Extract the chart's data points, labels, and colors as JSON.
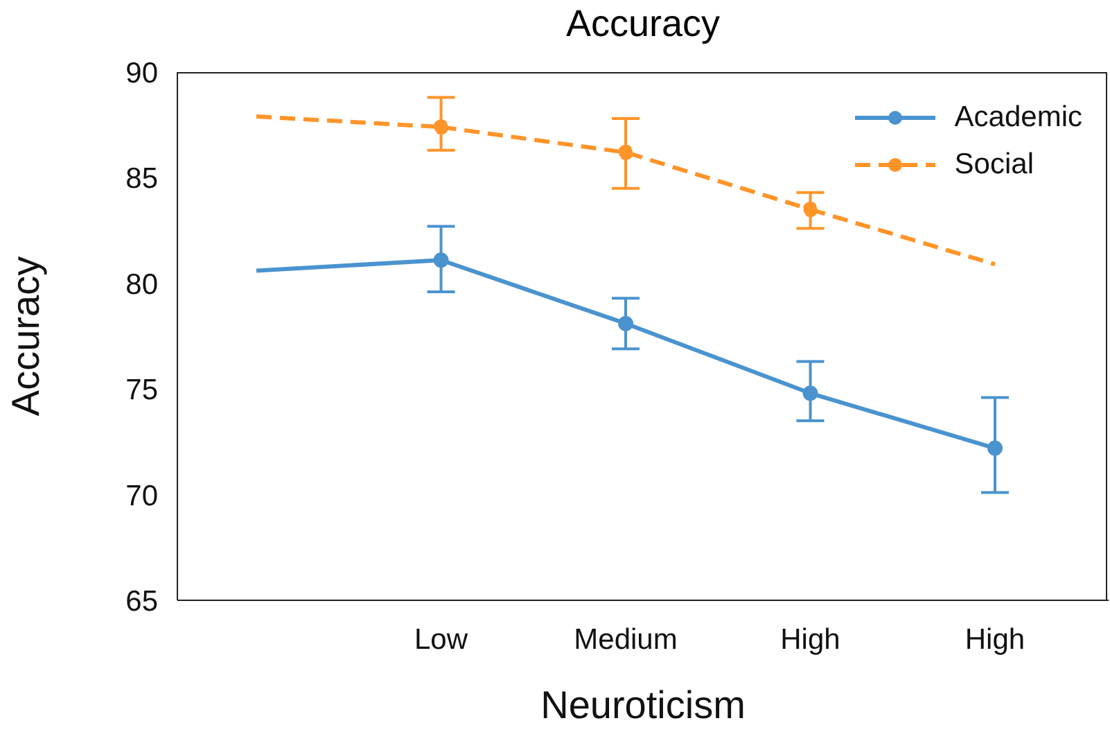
{
  "chart_data": {
    "type": "line",
    "title": "Accuracy",
    "xlabel": "Neuroticism",
    "ylabel": "Accuracy",
    "categories": [
      null,
      "Low",
      "Medium",
      "High",
      "High"
    ],
    "ylim": [
      65,
      90
    ],
    "yticks": [
      65,
      70,
      75,
      80,
      85,
      90
    ],
    "grid": false,
    "legend": "top right",
    "series": [
      {
        "name": "Academic",
        "color": "#4a93cf",
        "values": [
          null,
          81.1,
          78.1,
          74.8,
          72.2
        ],
        "errors": [
          null,
          [
            79.6,
            82.7
          ],
          [
            76.9,
            79.3
          ],
          [
            73.5,
            76.3
          ],
          [
            70.1,
            74.6
          ]
        ],
        "marker": "circle",
        "line_style": "solid"
      },
      {
        "color": "#4a93cf",
        "values": [
          80.6,
          81.1,
          null,
          null,
          null
        ],
        "marker": "none",
        "line_style": "solid"
      },
      {
        "name": "Social",
        "color": "#ff9429",
        "values": [
          null,
          87.4,
          86.2,
          83.5,
          null
        ],
        "errors": [
          null,
          [
            86.3,
            88.8
          ],
          [
            84.5,
            87.8
          ],
          [
            82.6,
            84.3
          ],
          null
        ],
        "marker": "circle",
        "line_style": "dashed"
      },
      {
        "color": "#ff9429",
        "values": [
          87.9,
          87.4,
          null,
          null,
          null
        ],
        "marker": "none",
        "line_style": "dashed"
      },
      {
        "color": "#ff9429",
        "values": [
          null,
          null,
          null,
          83.5,
          80.9
        ],
        "marker": "none",
        "line_style": "dashed"
      }
    ]
  }
}
